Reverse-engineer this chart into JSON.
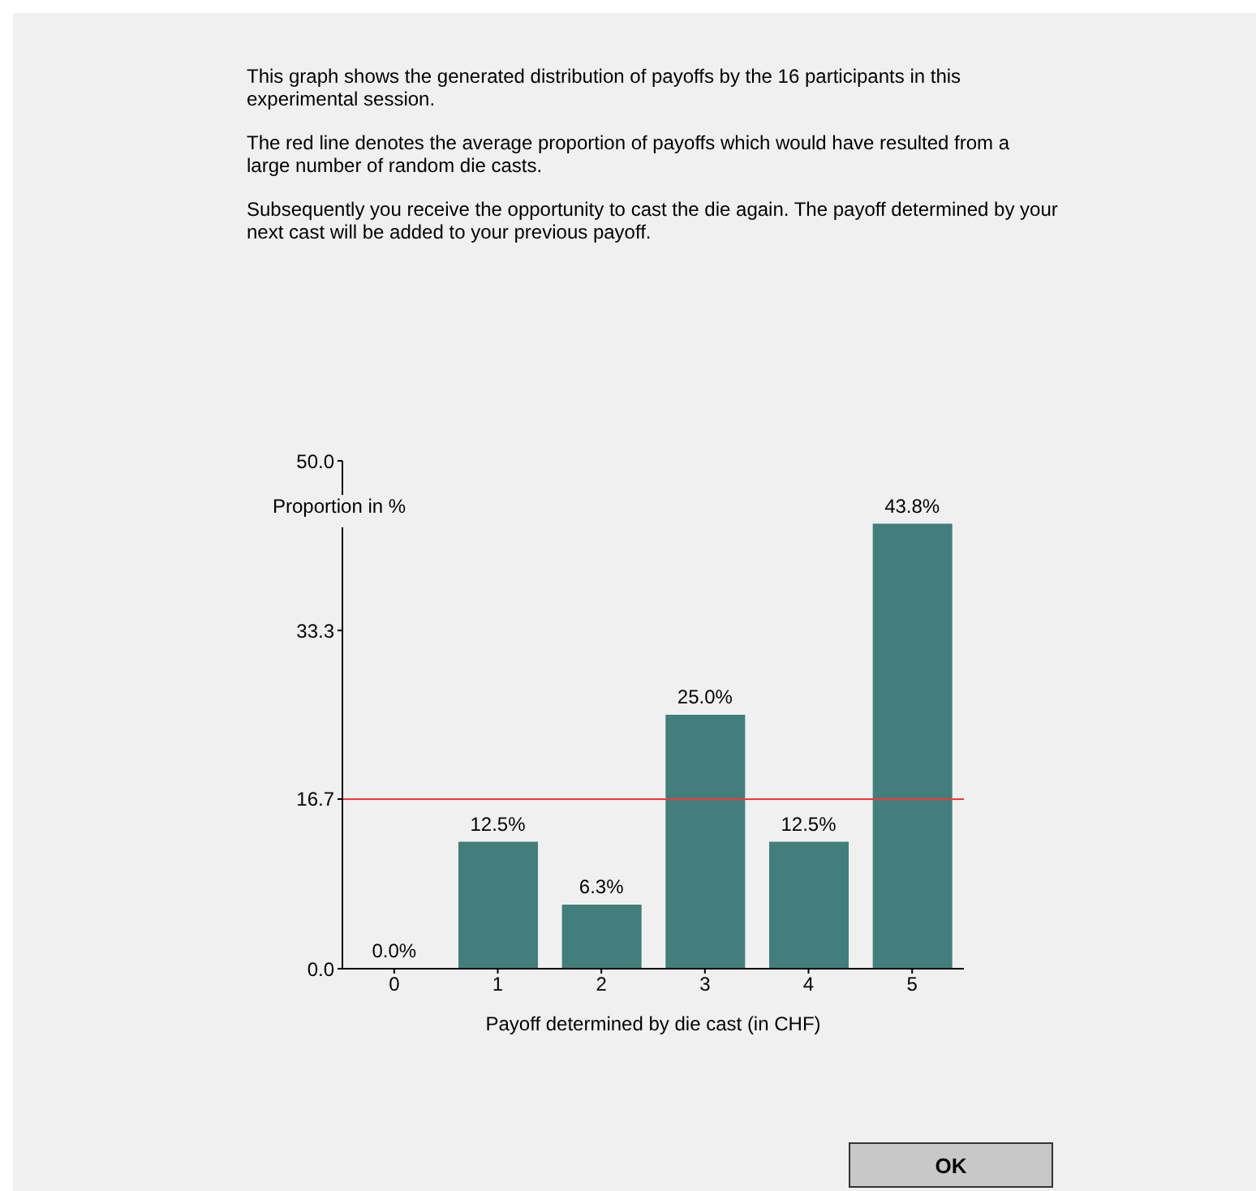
{
  "chart_data": {
    "type": "bar",
    "annotations": [
      "This graph shows the generated distribution of payoffs by the 16 participants in this experimental session.",
      "The red line denotes the average proportion of payoffs which would have resulted from a large number of random die casts.",
      "Subsequently you receive the opportunity to cast the die again. The payoff determined by your next cast will be added to your previous payoff.",
      "OK"
    ],
    "xlabel": "Payoff determined by die cast (in CHF)",
    "ylabel": "Proportion in %",
    "categories": [
      "0",
      "1",
      "2",
      "3",
      "4",
      "5"
    ],
    "values": [
      0,
      12.5,
      6.3,
      25,
      12.5,
      43.8
    ],
    "value_labels": [
      "0.0%",
      "12.5%",
      "6.3%",
      "25.0%",
      "12.5%",
      "43.8%"
    ],
    "color": "#417e7c",
    "ylim": [
      0,
      50
    ],
    "yticks": [
      {
        "value": 0,
        "label": "0.0"
      },
      16.7,
      33.3,
      {
        "value": 50,
        "label": "50.0"
      }
    ],
    "ref_lines": [
      {
        "axis": "y",
        "value": 16.7,
        "color": "#ff3333"
      }
    ],
    "grid": false,
    "legend": false
  }
}
